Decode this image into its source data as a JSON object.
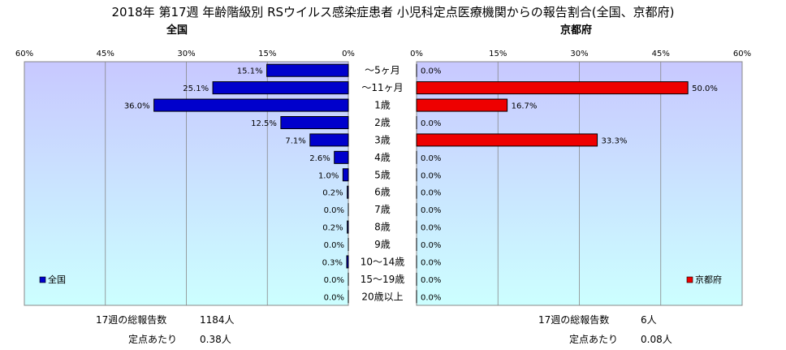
{
  "title": "2018年 第17週 年齢階級別 RSウイルス感染症患者 小児科定点医療機関からの報告割合(全国、京都府)",
  "chart_data": {
    "type": "bar",
    "categories": [
      "～5ヶ月",
      "～11ヶ月",
      "1歳",
      "2歳",
      "3歳",
      "4歳",
      "5歳",
      "6歳",
      "7歳",
      "8歳",
      "9歳",
      "10～14歳",
      "15～19歳",
      "20歳以上"
    ],
    "xlim": [
      0,
      60
    ],
    "ticks": [
      "0%",
      "15%",
      "30%",
      "45%",
      "60%"
    ],
    "grid": true,
    "panels": [
      {
        "subtitle": "全国",
        "legend": "全国",
        "legend_position": "bottom-left",
        "color": "#0000cc",
        "values": [
          15.1,
          25.1,
          36.0,
          12.5,
          7.1,
          2.6,
          1.0,
          0.2,
          0.0,
          0.2,
          0.0,
          0.3,
          0.0,
          0.0
        ],
        "labels": [
          "15.1%",
          "25.1%",
          "36.0%",
          "12.5%",
          "7.1%",
          "2.6%",
          "1.0%",
          "0.2%",
          "0.0%",
          "0.2%",
          "0.0%",
          "0.3%",
          "0.0%",
          "0.0%"
        ],
        "tick_labels": [
          "60%",
          "45%",
          "30%",
          "15%",
          "0%"
        ]
      },
      {
        "subtitle": "京都府",
        "legend": "京都府",
        "legend_position": "bottom-right",
        "color": "#ee0000",
        "values": [
          0.0,
          50.0,
          16.7,
          0.0,
          33.3,
          0.0,
          0.0,
          0.0,
          0.0,
          0.0,
          0.0,
          0.0,
          0.0,
          0.0
        ],
        "labels": [
          "0.0%",
          "50.0%",
          "16.7%",
          "0.0%",
          "33.3%",
          "0.0%",
          "0.0%",
          "0.0%",
          "0.0%",
          "0.0%",
          "0.0%",
          "0.0%",
          "0.0%",
          "0.0%"
        ],
        "tick_labels": [
          "0%",
          "15%",
          "30%",
          "45%",
          "60%"
        ]
      }
    ]
  },
  "footer": {
    "left": {
      "total_label": "17週の総報告数",
      "total_value": "1184人",
      "per_label": "定点あたり",
      "per_value": "0.38人"
    },
    "right": {
      "total_label": "17週の総報告数",
      "total_value": "6人",
      "per_label": "定点あたり",
      "per_value": "0.08人"
    }
  }
}
